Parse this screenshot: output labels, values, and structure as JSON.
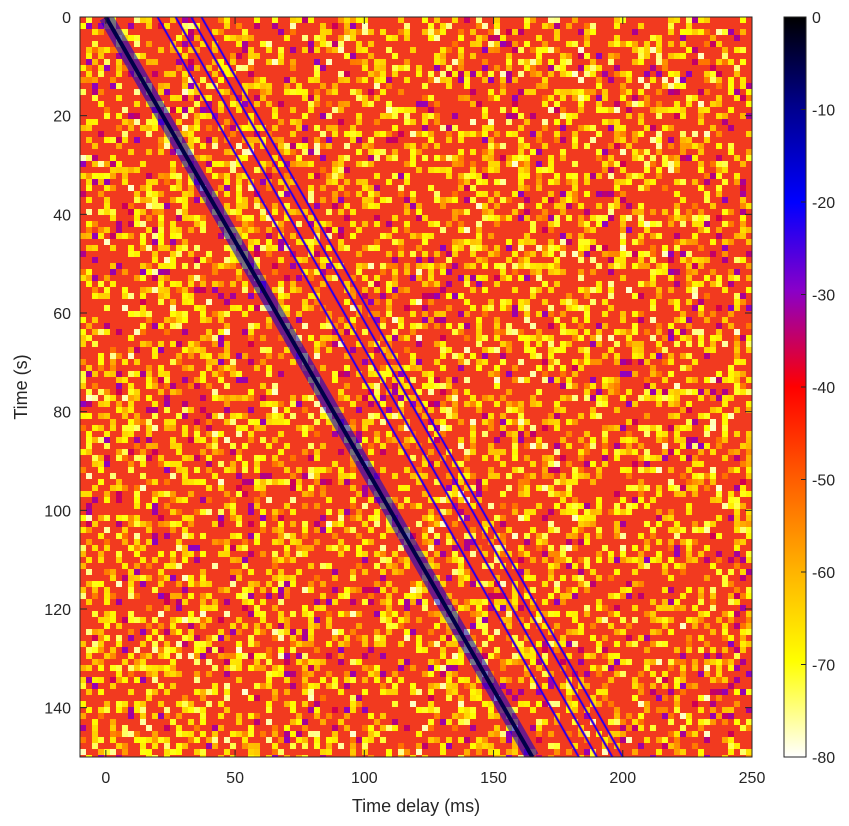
{
  "chart_data": {
    "type": "heatmap",
    "xlabel": "Time delay (ms)",
    "ylabel": "Time (s)",
    "xlim": [
      -10,
      250
    ],
    "ylim": [
      0,
      150
    ],
    "y_reversed": true,
    "xticks": [
      0,
      50,
      100,
      150,
      200,
      250
    ],
    "yticks": [
      0,
      20,
      40,
      60,
      80,
      100,
      120,
      140
    ],
    "colorbar": {
      "ticks": [
        0,
        -10,
        -20,
        -30,
        -40,
        -50,
        -60,
        -70,
        -80
      ],
      "range": [
        -80,
        0
      ],
      "colormap": "hot (reversed)",
      "colors": [
        "#000000",
        "#0000ff",
        "#ff0000",
        "#ffff00",
        "#ffffff"
      ]
    },
    "background_level_db": -40,
    "grid": false,
    "series": [
      {
        "level_db": -5,
        "points": [
          [
            0,
            0
          ],
          [
            165,
            150
          ]
        ]
      },
      {
        "level_db": -22,
        "points": [
          [
            20,
            0
          ],
          [
            183,
            150
          ]
        ]
      },
      {
        "level_db": -22,
        "points": [
          [
            27,
            0
          ],
          [
            190,
            150
          ]
        ]
      },
      {
        "level_db": -22,
        "points": [
          [
            33,
            0
          ],
          [
            196,
            150
          ]
        ]
      },
      {
        "level_db": -22,
        "points": [
          [
            37,
            0
          ],
          [
            200,
            150
          ]
        ]
      }
    ]
  }
}
